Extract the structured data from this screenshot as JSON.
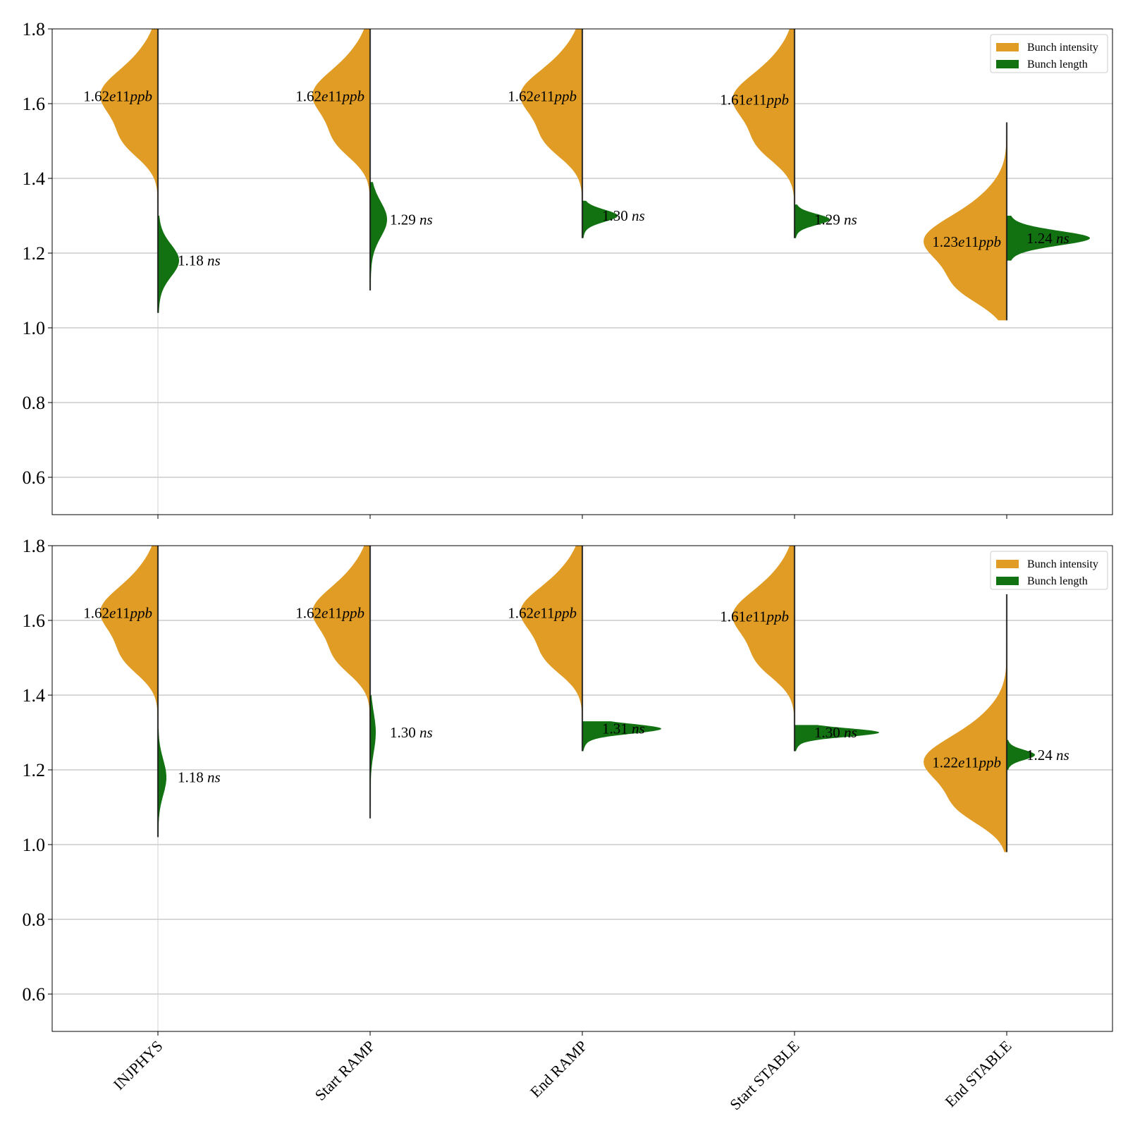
{
  "chart_data": [
    {
      "type": "violin",
      "ylim": [
        0.5,
        1.8
      ],
      "yticks": [
        "0.6",
        "0.8",
        "1.0",
        "1.2",
        "1.4",
        "1.6",
        "1.8"
      ],
      "grid": "y",
      "legend_placement": "top-right",
      "categories": [
        "INJPHYS",
        "Start RAMP",
        "End RAMP",
        "Start STABLE",
        "End STABLE"
      ],
      "legend": [
        {
          "label": "Bunch intensity",
          "color": "#e09c24"
        },
        {
          "label": "Bunch length",
          "color": "#127212"
        }
      ],
      "series": [
        {
          "name": "Bunch intensity",
          "side": "left",
          "color": "#e09c24",
          "medians": [
            1.62,
            1.62,
            1.62,
            1.61,
            1.23
          ],
          "ranges": [
            [
              1.33,
              1.8
            ],
            [
              1.33,
              1.8
            ],
            [
              1.33,
              1.8
            ],
            [
              1.33,
              1.8
            ],
            [
              1.02,
              1.55
            ]
          ],
          "labels": [
            {
              "num": "1.62",
              "exp": "e11",
              "unit": "ppb"
            },
            {
              "num": "1.62",
              "exp": "e11",
              "unit": "ppb"
            },
            {
              "num": "1.62",
              "exp": "e11",
              "unit": "ppb"
            },
            {
              "num": "1.61",
              "exp": "e11",
              "unit": "ppb"
            },
            {
              "num": "1.23",
              "exp": "e11",
              "unit": "ppb"
            }
          ]
        },
        {
          "name": "Bunch length",
          "side": "right",
          "color": "#127212",
          "medians": [
            1.18,
            1.29,
            1.3,
            1.29,
            1.24
          ],
          "ranges": [
            [
              1.04,
              1.3
            ],
            [
              1.1,
              1.39
            ],
            [
              1.24,
              1.34
            ],
            [
              1.24,
              1.33
            ],
            [
              1.18,
              1.3
            ]
          ],
          "labels": [
            {
              "num": "1.18",
              "unit": "ns"
            },
            {
              "num": "1.29",
              "unit": "ns"
            },
            {
              "num": "1.30",
              "unit": "ns"
            },
            {
              "num": "1.29",
              "unit": "ns"
            },
            {
              "num": "1.24",
              "unit": "ns"
            }
          ]
        }
      ]
    },
    {
      "type": "violin",
      "ylim": [
        0.5,
        1.8
      ],
      "yticks": [
        "0.6",
        "0.8",
        "1.0",
        "1.2",
        "1.4",
        "1.6",
        "1.8"
      ],
      "grid": "y",
      "legend_placement": "top-right",
      "categories": [
        "INJPHYS",
        "Start RAMP",
        "End RAMP",
        "Start STABLE",
        "End STABLE"
      ],
      "xtick_labels_visible": true,
      "legend": [
        {
          "label": "Bunch intensity",
          "color": "#e09c24"
        },
        {
          "label": "Bunch length",
          "color": "#127212"
        }
      ],
      "series": [
        {
          "name": "Bunch intensity",
          "side": "left",
          "color": "#e09c24",
          "medians": [
            1.62,
            1.62,
            1.62,
            1.61,
            1.22
          ],
          "ranges": [
            [
              1.33,
              1.8
            ],
            [
              1.33,
              1.8
            ],
            [
              1.33,
              1.8
            ],
            [
              1.33,
              1.8
            ],
            [
              0.98,
              1.67
            ]
          ],
          "labels": [
            {
              "num": "1.62",
              "exp": "e11",
              "unit": "ppb"
            },
            {
              "num": "1.62",
              "exp": "e11",
              "unit": "ppb"
            },
            {
              "num": "1.62",
              "exp": "e11",
              "unit": "ppb"
            },
            {
              "num": "1.61",
              "exp": "e11",
              "unit": "ppb"
            },
            {
              "num": "1.22",
              "exp": "e11",
              "unit": "ppb"
            }
          ]
        },
        {
          "name": "Bunch length",
          "side": "right",
          "color": "#127212",
          "medians": [
            1.18,
            1.3,
            1.31,
            1.3,
            1.24
          ],
          "ranges": [
            [
              1.02,
              1.31
            ],
            [
              1.07,
              1.4
            ],
            [
              1.25,
              1.33
            ],
            [
              1.25,
              1.32
            ],
            [
              1.2,
              1.28
            ]
          ],
          "labels": [
            {
              "num": "1.18",
              "unit": "ns"
            },
            {
              "num": "1.30",
              "unit": "ns"
            },
            {
              "num": "1.31",
              "unit": "ns"
            },
            {
              "num": "1.30",
              "unit": "ns"
            },
            {
              "num": "1.24",
              "unit": "ns"
            }
          ]
        }
      ]
    }
  ]
}
